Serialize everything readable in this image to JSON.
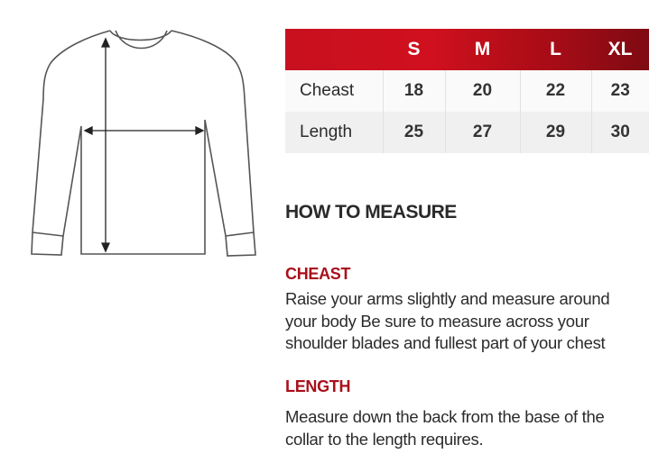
{
  "size_table": {
    "sizes": [
      "S",
      "M",
      "L",
      "XL"
    ],
    "rows": [
      {
        "label": "Cheast",
        "values": [
          "18",
          "20",
          "22",
          "23"
        ]
      },
      {
        "label": "Length",
        "values": [
          "25",
          "27",
          "29",
          "30"
        ]
      }
    ],
    "header_color": "#c8101f"
  },
  "how_to_measure": {
    "title": "HOW TO MEASURE",
    "cheast": {
      "heading": "CHEAST",
      "lines": [
        "Raise your arms slightly and measure around",
        "your body Be sure to measure across your",
        "shoulder blades and fullest part of your chest"
      ]
    },
    "length": {
      "heading": "LENGTH",
      "lines": [
        "Measure down the back from the base of the",
        "collar to the length requires."
      ]
    },
    "heading_color": "#a8101c"
  },
  "illustration": {
    "icon": "sweater-measurement-diagram"
  }
}
